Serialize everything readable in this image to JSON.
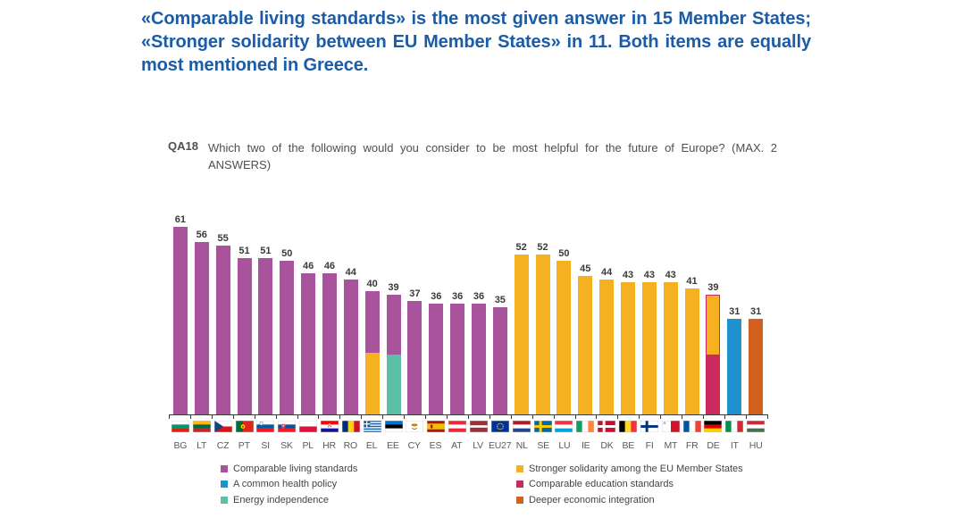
{
  "headline": "«Comparable living standards» is the most given answer in 15 Member States; «Stronger solidarity between EU Member States» in 11. Both items are equally most mentioned in Greece.",
  "question": {
    "id": "QA18",
    "text": "Which two of the following would you consider to be most helpful for the future of Europe? (MAX. 2 ANSWERS)"
  },
  "chart_data": {
    "type": "bar",
    "title": "QA18 Which two of the following would you consider to be most helpful for the future of Europe? (MAX. 2 ANSWERS)",
    "ylim": [
      0,
      65
    ],
    "grid": false,
    "legend_position": "bottom",
    "categories": [
      "BG",
      "LT",
      "CZ",
      "PT",
      "SI",
      "SK",
      "PL",
      "HR",
      "RO",
      "EL",
      "EE",
      "CY",
      "ES",
      "AT",
      "LV",
      "EU27",
      "NL",
      "SE",
      "LU",
      "IE",
      "DK",
      "BE",
      "FI",
      "MT",
      "FR",
      "DE",
      "IT",
      "HU"
    ],
    "values": [
      61,
      56,
      55,
      51,
      51,
      50,
      46,
      46,
      44,
      40,
      39,
      37,
      36,
      36,
      36,
      35,
      52,
      52,
      50,
      45,
      44,
      43,
      43,
      43,
      41,
      39,
      31,
      31
    ],
    "countries": [
      {
        "code": "BG",
        "value": 61,
        "segments": [
          "living"
        ]
      },
      {
        "code": "LT",
        "value": 56,
        "segments": [
          "living"
        ]
      },
      {
        "code": "CZ",
        "value": 55,
        "segments": [
          "living"
        ]
      },
      {
        "code": "PT",
        "value": 51,
        "segments": [
          "living"
        ]
      },
      {
        "code": "SI",
        "value": 51,
        "segments": [
          "living"
        ]
      },
      {
        "code": "SK",
        "value": 50,
        "segments": [
          "living"
        ]
      },
      {
        "code": "PL",
        "value": 46,
        "segments": [
          "living"
        ]
      },
      {
        "code": "HR",
        "value": 46,
        "segments": [
          "living"
        ]
      },
      {
        "code": "RO",
        "value": 44,
        "segments": [
          "living"
        ]
      },
      {
        "code": "EL",
        "value": 40,
        "segments": [
          "living",
          "solidarity"
        ]
      },
      {
        "code": "EE",
        "value": 39,
        "segments": [
          "living",
          "energy"
        ]
      },
      {
        "code": "CY",
        "value": 37,
        "segments": [
          "living"
        ]
      },
      {
        "code": "ES",
        "value": 36,
        "segments": [
          "living"
        ]
      },
      {
        "code": "AT",
        "value": 36,
        "segments": [
          "living"
        ]
      },
      {
        "code": "LV",
        "value": 36,
        "segments": [
          "living"
        ]
      },
      {
        "code": "EU27",
        "value": 35,
        "segments": [
          "living"
        ]
      },
      {
        "code": "NL",
        "value": 52,
        "segments": [
          "solidarity"
        ]
      },
      {
        "code": "SE",
        "value": 52,
        "segments": [
          "solidarity"
        ]
      },
      {
        "code": "LU",
        "value": 50,
        "segments": [
          "solidarity"
        ]
      },
      {
        "code": "IE",
        "value": 45,
        "segments": [
          "solidarity"
        ]
      },
      {
        "code": "DK",
        "value": 44,
        "segments": [
          "solidarity"
        ]
      },
      {
        "code": "BE",
        "value": 43,
        "segments": [
          "solidarity"
        ]
      },
      {
        "code": "FI",
        "value": 43,
        "segments": [
          "solidarity"
        ]
      },
      {
        "code": "MT",
        "value": 43,
        "segments": [
          "solidarity"
        ]
      },
      {
        "code": "FR",
        "value": 41,
        "segments": [
          "solidarity"
        ]
      },
      {
        "code": "DE",
        "value": 39,
        "segments": [
          "solidarity",
          "education"
        ],
        "outline": "education"
      },
      {
        "code": "IT",
        "value": 31,
        "segments": [
          "health"
        ]
      },
      {
        "code": "HU",
        "value": 31,
        "segments": [
          "economic"
        ]
      }
    ],
    "series_colors": {
      "living": "#A8539B",
      "solidarity": "#F5B120",
      "health": "#2093CE",
      "education": "#CB2A5E",
      "energy": "#5BC0A5",
      "economic": "#D2601E"
    },
    "legend": {
      "left": [
        {
          "key": "living",
          "label": "Comparable living standards"
        },
        {
          "key": "health",
          "label": "A common health policy"
        },
        {
          "key": "energy",
          "label": "Energy independence"
        }
      ],
      "right": [
        {
          "key": "solidarity",
          "label": "Stronger solidarity among the EU Member States"
        },
        {
          "key": "education",
          "label": "Comparable education standards"
        },
        {
          "key": "economic",
          "label": "Deeper economic integration"
        }
      ]
    }
  },
  "colors": {
    "headline": "#1A5CA8",
    "question_text": "#4F4F4F",
    "value_labels": "#3A3A3A",
    "axis": "#3A3A3A",
    "country_codes": "#595959"
  }
}
